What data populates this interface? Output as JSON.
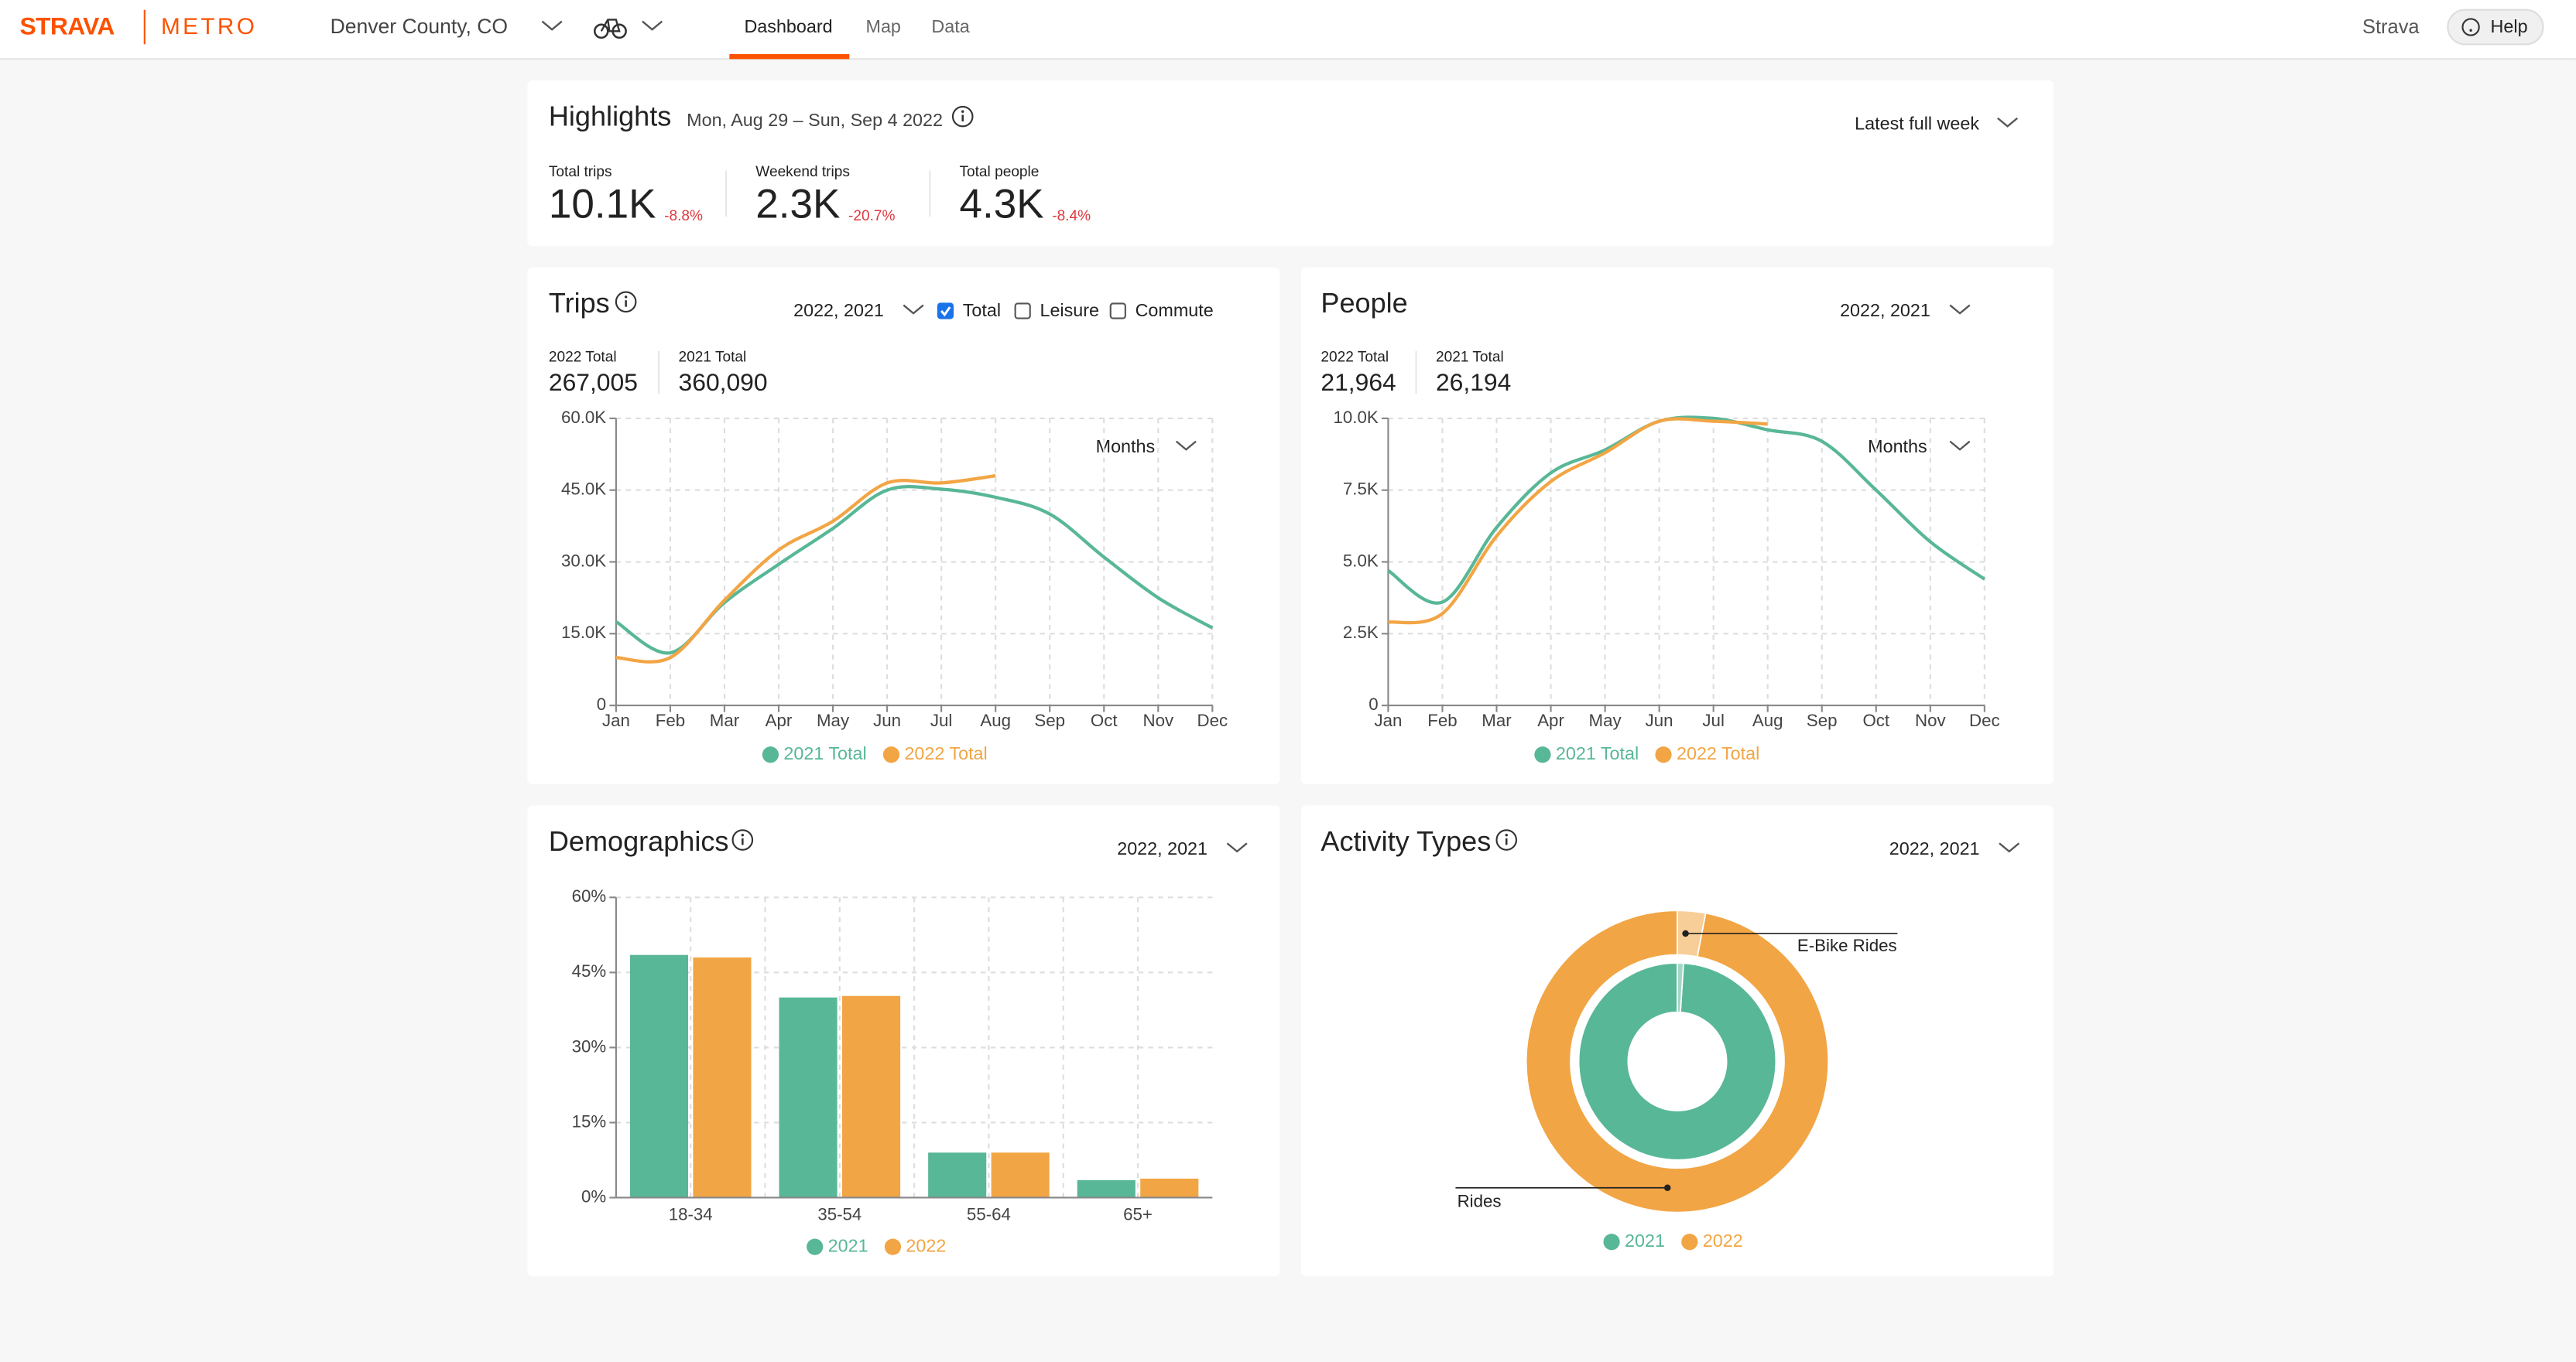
{
  "nav": {
    "brand": "STRAVA",
    "product": "METRO",
    "location": "Denver County, CO",
    "tabs": [
      "Dashboard",
      "Map",
      "Data"
    ],
    "account": "Strava",
    "help": "Help"
  },
  "highlights": {
    "title": "Highlights",
    "date_range": "Mon, Aug 29 – Sun, Sep 4 2022",
    "period": "Latest full week",
    "stats": [
      {
        "label": "Total trips",
        "value": "10.1K",
        "change": "-8.8%"
      },
      {
        "label": "Weekend trips",
        "value": "2.3K",
        "change": "-20.7%"
      },
      {
        "label": "Total people",
        "value": "4.3K",
        "change": "-8.4%"
      }
    ]
  },
  "chart_data": [
    {
      "type": "line",
      "title": "Trips",
      "selector": "2022, 2021",
      "filters": [
        {
          "label": "Total",
          "checked": true
        },
        {
          "label": "Leisure",
          "checked": false
        },
        {
          "label": "Commute",
          "checked": false
        }
      ],
      "interval": "Months",
      "totals": [
        {
          "label": "2022 Total",
          "value": "267,005"
        },
        {
          "label": "2021 Total",
          "value": "360,090"
        }
      ],
      "categories": [
        "Jan",
        "Feb",
        "Mar",
        "Apr",
        "May",
        "Jun",
        "Jul",
        "Aug",
        "Sep",
        "Oct",
        "Nov",
        "Dec"
      ],
      "series": [
        {
          "name": "2021 Total",
          "color": "#58b796",
          "values": [
            17500,
            11000,
            21500,
            29500,
            37000,
            45000,
            45200,
            43500,
            40000,
            31000,
            22500,
            16200
          ]
        },
        {
          "name": "2022 Total",
          "color": "#f2a544",
          "values": [
            10000,
            10000,
            22000,
            32500,
            38500,
            46500,
            46500,
            48000,
            null,
            null,
            null,
            null
          ]
        }
      ],
      "ylim": [
        0,
        60000
      ],
      "yticks": [
        0,
        {
          "value": 15000,
          "label": "15.0K"
        },
        {
          "value": 30000,
          "label": "30.0K"
        },
        {
          "value": 45000,
          "label": "45.0K"
        },
        {
          "value": 60000,
          "label": "60.0K"
        }
      ],
      "grid": true
    },
    {
      "type": "line",
      "title": "People",
      "selector": "2022, 2021",
      "interval": "Months",
      "totals": [
        {
          "label": "2022 Total",
          "value": "21,964"
        },
        {
          "label": "2021 Total",
          "value": "26,194"
        }
      ],
      "categories": [
        "Jan",
        "Feb",
        "Mar",
        "Apr",
        "May",
        "Jun",
        "Jul",
        "Aug",
        "Sep",
        "Oct",
        "Nov",
        "Dec"
      ],
      "series": [
        {
          "name": "2021 Total",
          "color": "#58b796",
          "values": [
            4700,
            3600,
            6200,
            8100,
            8900,
            9900,
            10000,
            9600,
            9200,
            7500,
            5700,
            4400
          ]
        },
        {
          "name": "2022 Total",
          "color": "#f2a544",
          "values": [
            2900,
            3200,
            5900,
            7800,
            8800,
            9900,
            9900,
            9800,
            null,
            null,
            null,
            null
          ]
        }
      ],
      "ylim": [
        0,
        10000
      ],
      "yticks": [
        0,
        {
          "value": 2500,
          "label": "2.5K"
        },
        {
          "value": 5000,
          "label": "5.0K"
        },
        {
          "value": 7500,
          "label": "7.5K"
        },
        {
          "value": 10000,
          "label": "10.0K"
        }
      ],
      "grid": true
    },
    {
      "type": "bar",
      "title": "Demographics",
      "selector": "2022, 2021",
      "categories": [
        "18-34",
        "35-54",
        "55-64",
        "65+"
      ],
      "series": [
        {
          "name": "2021",
          "color": "#58b796",
          "values": [
            48.5,
            40,
            9,
            3.5
          ]
        },
        {
          "name": "2022",
          "color": "#f2a544",
          "values": [
            48,
            40.3,
            9,
            3.8
          ]
        }
      ],
      "ylim": [
        0,
        60
      ],
      "yticks": [
        {
          "value": 0,
          "label": "0%"
        },
        {
          "value": 15,
          "label": "15%"
        },
        {
          "value": 30,
          "label": "30%"
        },
        {
          "value": 45,
          "label": "45%"
        },
        {
          "value": 60,
          "label": "60%"
        }
      ],
      "grid": true
    },
    {
      "type": "donut",
      "title": "Activity Types",
      "selector": "2022, 2021",
      "categories": [
        "Rides",
        "E-Bike Rides"
      ],
      "series": [
        {
          "name": "2021",
          "color": "#58b796",
          "values": [
            99,
            1
          ]
        },
        {
          "name": "2022",
          "color": "#f2a544",
          "values": [
            97,
            3
          ]
        }
      ]
    }
  ]
}
